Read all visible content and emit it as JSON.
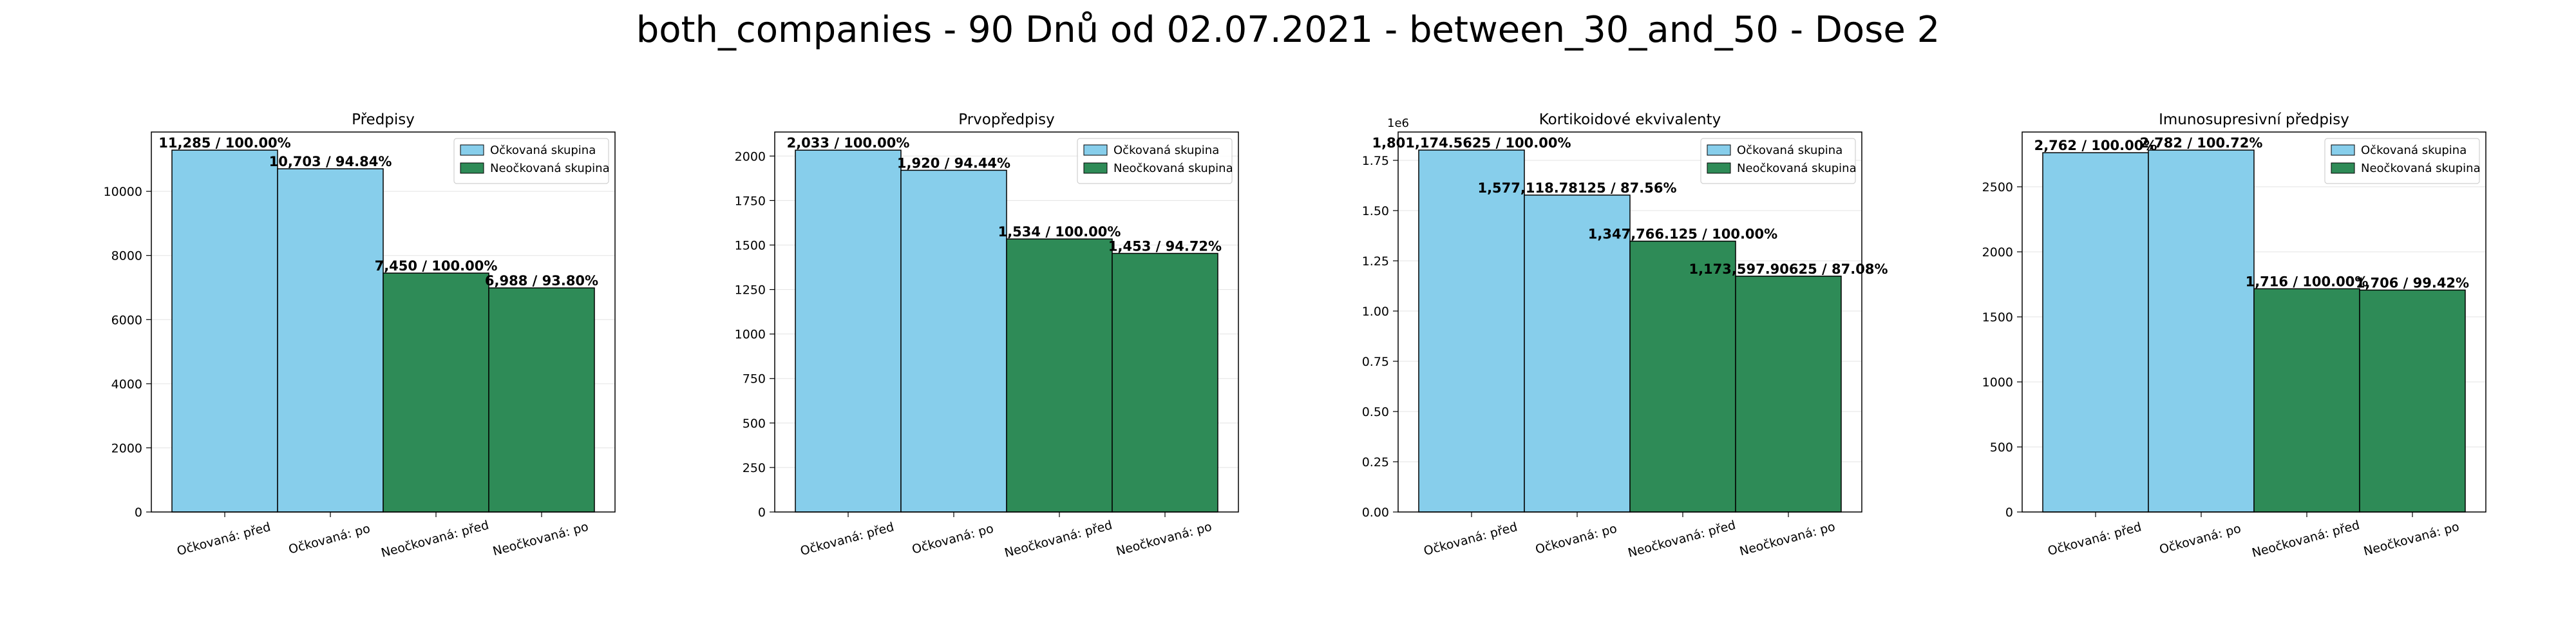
{
  "figure": {
    "title": "both_companies - 90 Dnů od 02.07.2021 - between_30_and_50 - Dose 2"
  },
  "colors": {
    "vaccinated": "#87ceeb",
    "unvaccinated": "#2e8b57",
    "edge": "#000000"
  },
  "chart_data": [
    {
      "type": "bar",
      "title": "Předpisy",
      "categories": [
        "Očkovaná: před",
        "Očkovaná: po",
        "Neočkovaná: před",
        "Neočkovaná: po"
      ],
      "values": [
        11285,
        10703,
        7450,
        6988
      ],
      "bar_labels": [
        "11,285 / 100.00%",
        "10,703 / 94.84%",
        "7,450 / 100.00%",
        "6,988 / 93.80%"
      ],
      "bar_groups": [
        "vaccinated",
        "vaccinated",
        "unvaccinated",
        "unvaccinated"
      ],
      "ylim": [
        0,
        11850
      ],
      "yticks": [
        0,
        2000,
        4000,
        6000,
        8000,
        10000
      ],
      "ytick_labels": [
        "0",
        "2000",
        "4000",
        "6000",
        "8000",
        "10000"
      ],
      "legend": [
        "Očkovaná skupina",
        "Neočkovaná skupina"
      ],
      "legend_loc": "upper right",
      "grid": true
    },
    {
      "type": "bar",
      "title": "Prvopředpisy",
      "categories": [
        "Očkovaná: před",
        "Očkovaná: po",
        "Neočkovaná: před",
        "Neočkovaná: po"
      ],
      "values": [
        2033,
        1920,
        1534,
        1453
      ],
      "bar_labels": [
        "2,033 / 100.00%",
        "1,920 / 94.44%",
        "1,534 / 100.00%",
        "1,453 / 94.72%"
      ],
      "bar_groups": [
        "vaccinated",
        "vaccinated",
        "unvaccinated",
        "unvaccinated"
      ],
      "ylim": [
        0,
        2135
      ],
      "yticks": [
        0,
        250,
        500,
        750,
        1000,
        1250,
        1500,
        1750,
        2000
      ],
      "ytick_labels": [
        "0",
        "250",
        "500",
        "750",
        "1000",
        "1250",
        "1500",
        "1750",
        "2000"
      ],
      "legend": [
        "Očkovaná skupina",
        "Neočkovaná skupina"
      ],
      "legend_loc": "upper right",
      "grid": true
    },
    {
      "type": "bar",
      "title": "Kortikoidové ekvivalenty",
      "categories": [
        "Očkovaná: před",
        "Očkovaná: po",
        "Neočkovaná: před",
        "Neočkovaná: po"
      ],
      "values": [
        1801174.5625,
        1577118.78125,
        1347766.125,
        1173597.90625
      ],
      "bar_labels": [
        "1,801,174.5625 / 100.00%",
        "1,577,118.78125 / 87.56%",
        "1,347,766.125 / 100.00%",
        "1,173,597.90625 / 87.08%"
      ],
      "bar_groups": [
        "vaccinated",
        "vaccinated",
        "unvaccinated",
        "unvaccinated"
      ],
      "ylim": [
        0,
        1891000
      ],
      "yticks": [
        0,
        250000,
        500000,
        750000,
        1000000,
        1250000,
        1500000,
        1750000
      ],
      "ytick_labels": [
        "0.00",
        "0.25",
        "0.50",
        "0.75",
        "1.00",
        "1.25",
        "1.50",
        "1.75"
      ],
      "y_offset_label": "1e6",
      "legend": [
        "Očkovaná skupina",
        "Neočkovaná skupina"
      ],
      "legend_loc": "upper right",
      "grid": true
    },
    {
      "type": "bar",
      "title": "Imunosupresivní předpisy",
      "categories": [
        "Očkovaná: před",
        "Očkovaná: po",
        "Neočkovaná: před",
        "Neočkovaná: po"
      ],
      "values": [
        2762,
        2782,
        1716,
        1706
      ],
      "bar_labels": [
        "2,762 / 100.00%",
        "2,782 / 100.72%",
        "1,716 / 100.00%",
        "1,706 / 99.42%"
      ],
      "bar_groups": [
        "vaccinated",
        "vaccinated",
        "unvaccinated",
        "unvaccinated"
      ],
      "ylim": [
        0,
        2921
      ],
      "yticks": [
        0,
        500,
        1000,
        1500,
        2000,
        2500
      ],
      "ytick_labels": [
        "0",
        "500",
        "1000",
        "1500",
        "2000",
        "2500"
      ],
      "legend": [
        "Očkovaná skupina",
        "Neočkovaná skupina"
      ],
      "legend_loc": "upper right",
      "grid": true
    }
  ]
}
